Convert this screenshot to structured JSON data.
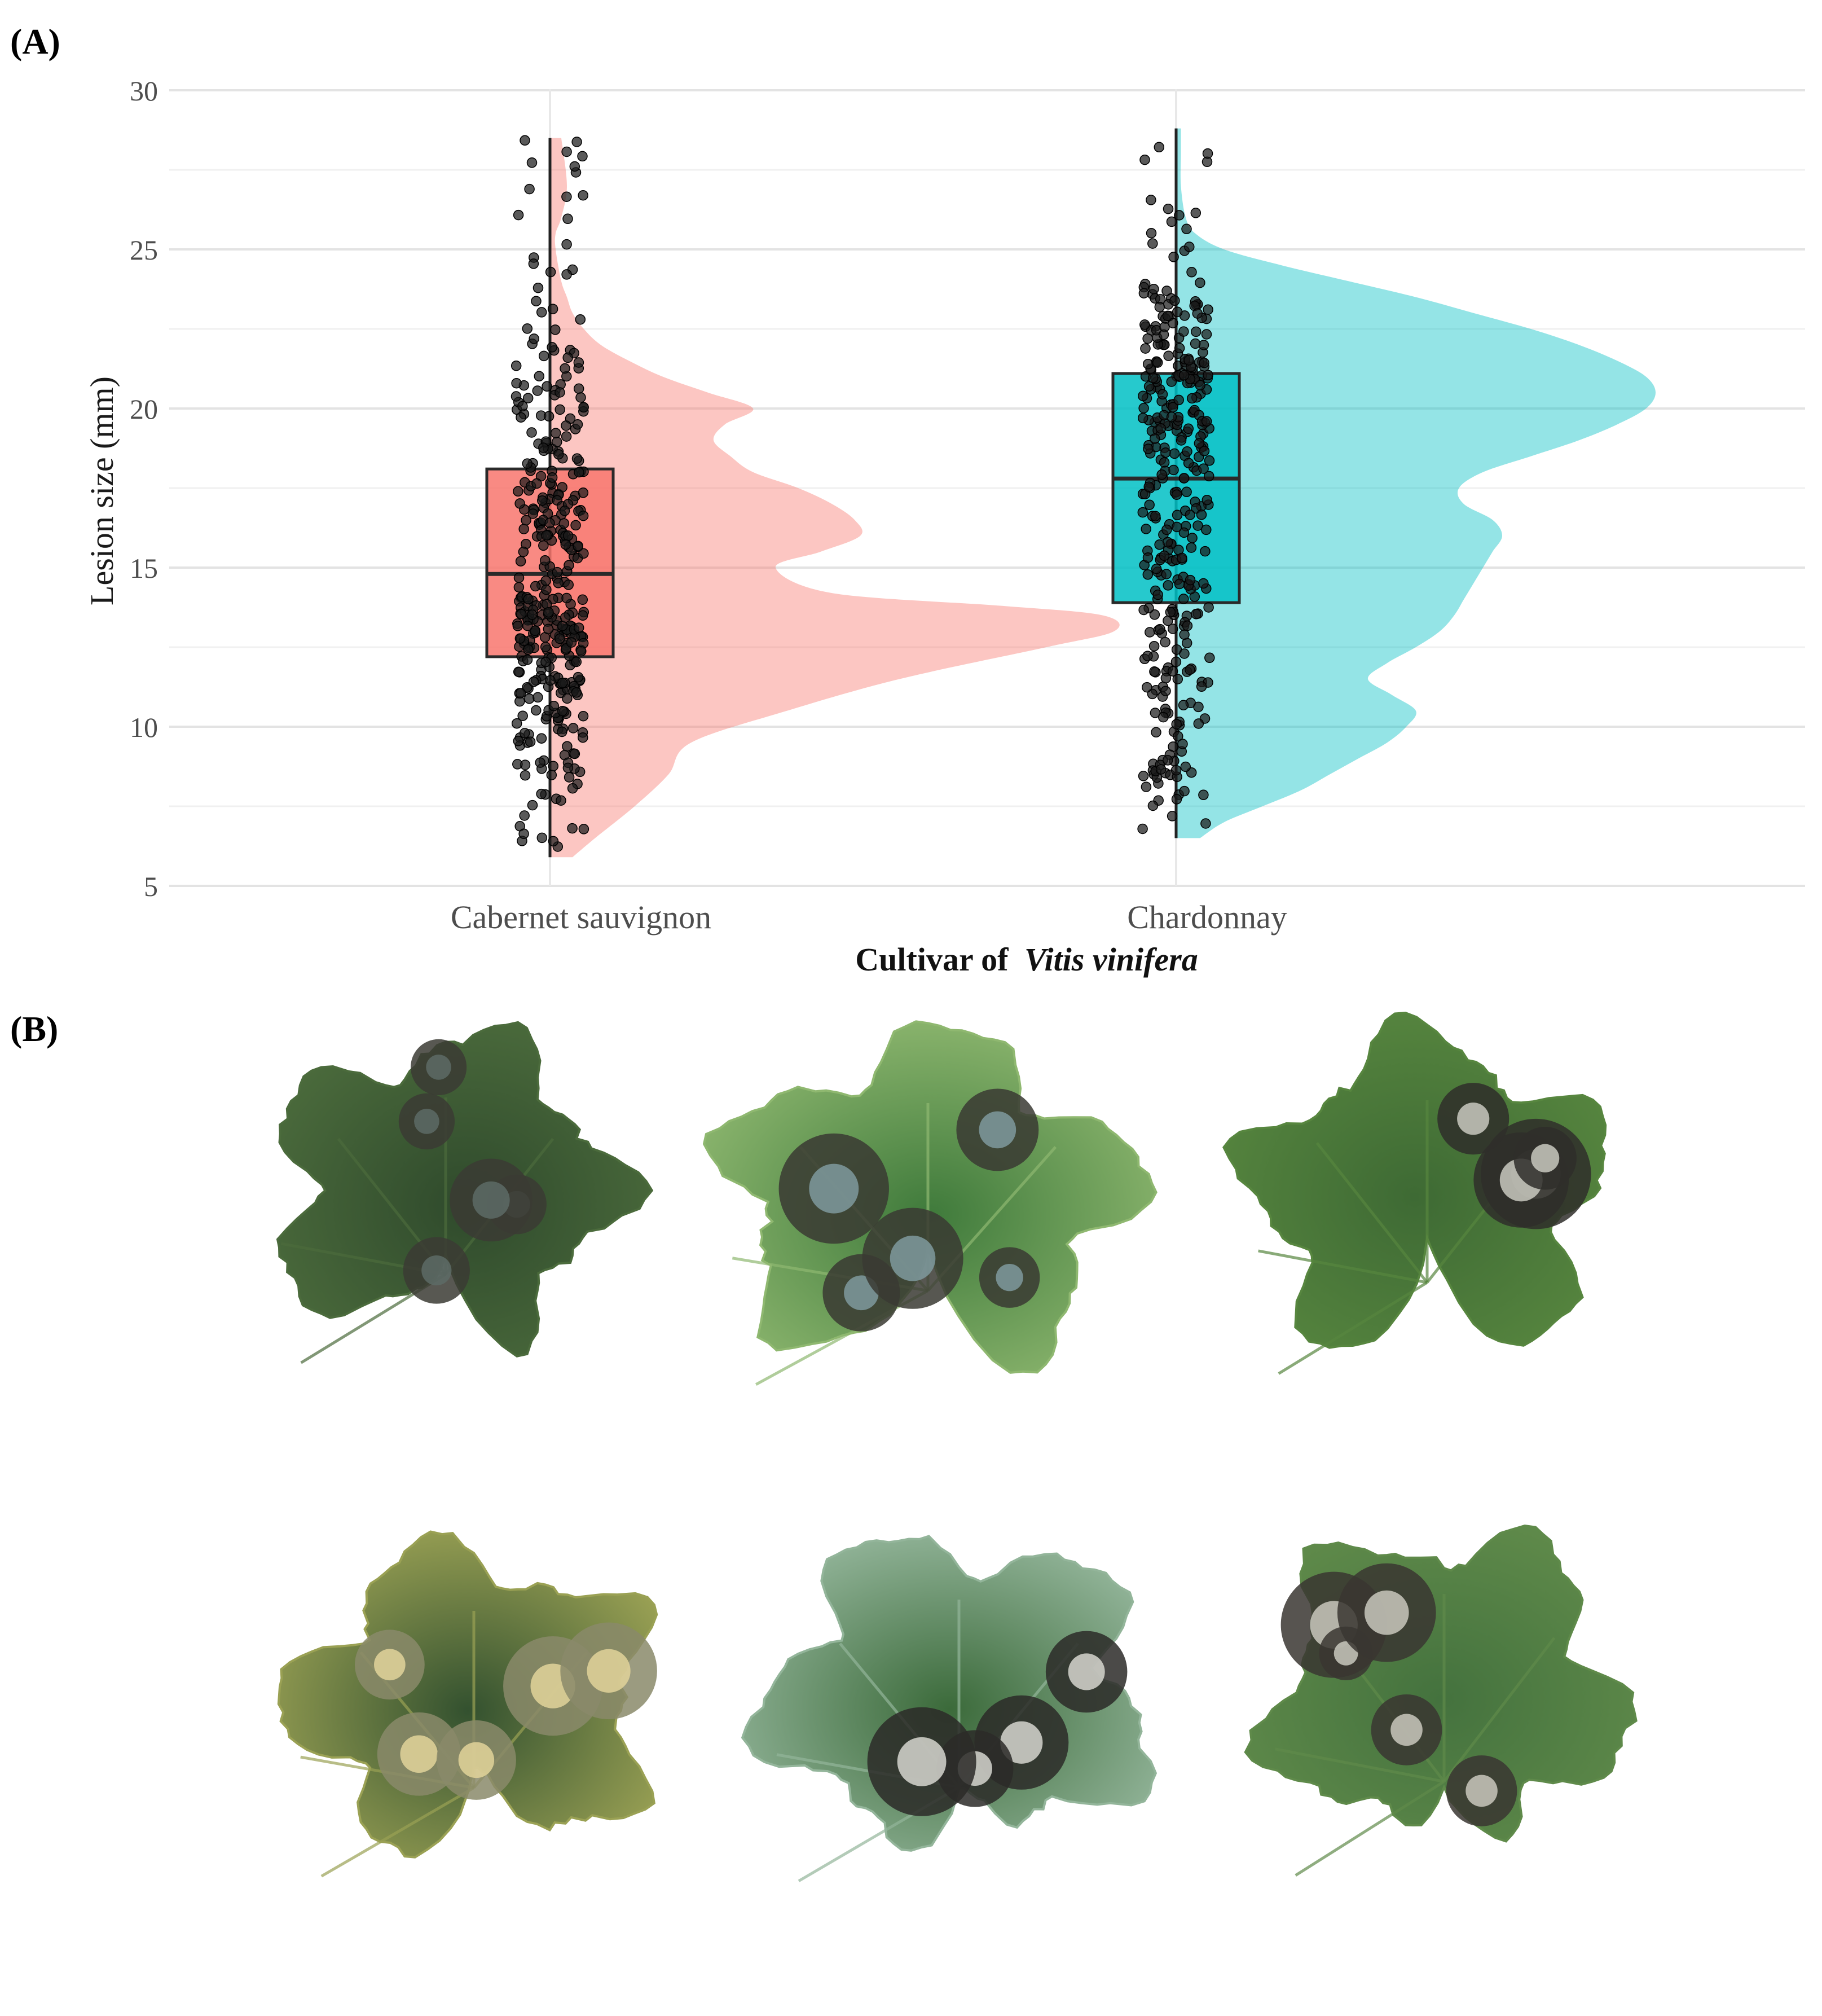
{
  "panel_a_label": "(A)",
  "panel_b_label": "(B)",
  "chart_data": {
    "type": "raincloud",
    "title": "",
    "xlabel": "Cultivar of",
    "xlabel_italic": "Vitis vinifera",
    "ylabel": "Lesion size (mm)",
    "ylim": [
      5,
      30
    ],
    "yticks": [
      5,
      10,
      15,
      20,
      25,
      30
    ],
    "grid": true,
    "legend": "none",
    "categories": [
      "Cabernet sauvignon",
      "Chardonnay"
    ],
    "series": [
      {
        "category": "Cabernet sauvignon",
        "color": "#f8766d",
        "box": {
          "min": 5.9,
          "q1": 12.2,
          "median": 14.8,
          "q3": 18.1,
          "max": 28.5
        },
        "density": {
          "y": [
            5.9,
            6.5,
            7.5,
            8.5,
            9.5,
            10.5,
            11.5,
            12.5,
            13.0,
            13.5,
            13.8,
            14.2,
            15.0,
            15.5,
            16.0,
            16.5,
            17.0,
            17.5,
            18.0,
            18.5,
            19.0,
            19.5,
            20.0,
            20.5,
            21.0,
            21.5,
            22.0,
            22.5,
            23.0,
            23.5,
            24.0,
            25.0,
            25.5,
            26.0,
            27.0,
            28.5
          ],
          "d": [
            0.04,
            0.08,
            0.15,
            0.21,
            0.25,
            0.42,
            0.62,
            0.88,
            1.0,
            0.98,
            0.8,
            0.5,
            0.4,
            0.48,
            0.55,
            0.54,
            0.5,
            0.44,
            0.36,
            0.32,
            0.29,
            0.31,
            0.36,
            0.28,
            0.2,
            0.14,
            0.09,
            0.06,
            0.04,
            0.03,
            0.02,
            0.01,
            0.01,
            0.02,
            0.03,
            0.02
          ]
        },
        "points": {
          "count": 380,
          "seed": 7
        }
      },
      {
        "category": "Chardonnay",
        "color": "#00bfc4",
        "box": {
          "min": 6.5,
          "q1": 13.9,
          "median": 17.8,
          "q3": 21.1,
          "max": 28.8
        },
        "density": {
          "y": [
            6.5,
            7.0,
            7.5,
            8.0,
            8.5,
            9.0,
            9.5,
            10.0,
            10.5,
            11.0,
            11.5,
            12.0,
            12.5,
            13.0,
            13.5,
            14.0,
            14.5,
            15.0,
            15.5,
            16.0,
            16.5,
            17.0,
            17.5,
            18.0,
            18.5,
            19.0,
            19.5,
            20.0,
            20.5,
            21.0,
            21.5,
            22.0,
            22.5,
            23.0,
            23.5,
            24.0,
            24.5,
            25.0,
            25.5,
            26.0,
            27.0,
            28.0,
            28.8
          ],
          "d": [
            0.05,
            0.1,
            0.18,
            0.26,
            0.32,
            0.38,
            0.44,
            0.48,
            0.5,
            0.45,
            0.4,
            0.44,
            0.5,
            0.55,
            0.58,
            0.6,
            0.62,
            0.64,
            0.66,
            0.68,
            0.66,
            0.6,
            0.59,
            0.64,
            0.74,
            0.84,
            0.92,
            0.98,
            1.0,
            0.98,
            0.92,
            0.84,
            0.74,
            0.62,
            0.5,
            0.36,
            0.22,
            0.1,
            0.04,
            0.02,
            0.01,
            0.01,
            0.01
          ]
        },
        "points": {
          "count": 360,
          "seed": 13
        }
      }
    ]
  },
  "leaf_images": [
    {
      "name": "leaf-1",
      "base": "#2f4a2c",
      "edge": "#4b6b3c",
      "lesions": 5,
      "lesion_color": "#3b3b34",
      "center_color": "#5d6b66"
    },
    {
      "name": "leaf-2",
      "base": "#3f7a3b",
      "edge": "#8fb870",
      "lesions": 5,
      "lesion_color": "#3a3a33",
      "center_color": "#7f9a9e"
    },
    {
      "name": "leaf-3",
      "base": "#3e6a34",
      "edge": "#57863f",
      "lesions": 4,
      "lesion_color": "#2f2e2a",
      "center_color": "#c9c9bf"
    },
    {
      "name": "leaf-4",
      "base": "#33512f",
      "edge": "#9aa154",
      "lesions": 5,
      "lesion_color": "#8a8a6a",
      "center_color": "#e2d39a"
    },
    {
      "name": "leaf-5",
      "base": "#3b6a3a",
      "edge": "#93b59a",
      "lesions": 4,
      "lesion_color": "#2b2a28",
      "center_color": "#d6d6cf"
    },
    {
      "name": "leaf-6",
      "base": "#44723e",
      "edge": "#5f8a4a",
      "lesions": 5,
      "lesion_color": "#3a3631",
      "center_color": "#c9c8bd"
    }
  ]
}
